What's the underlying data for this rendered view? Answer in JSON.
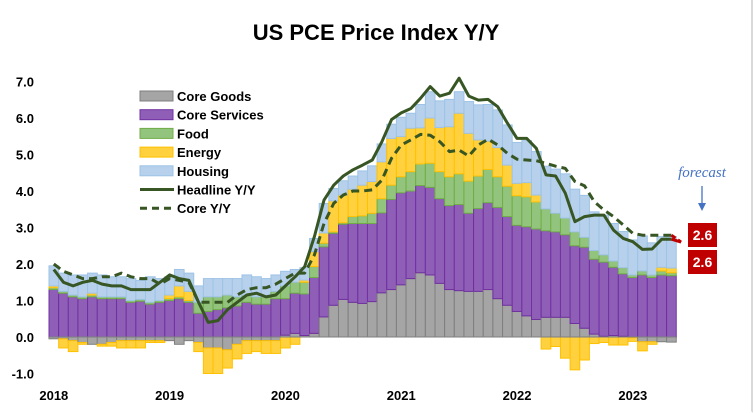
{
  "chart_data": {
    "type": "bar",
    "stacked": true,
    "title": "US PCE Price Index Y/Y",
    "xlabel": "",
    "ylabel": "",
    "ylim": [
      -1.0,
      7.0
    ],
    "y_ticks": [
      "-1.0",
      "0.0",
      "1.0",
      "2.0",
      "3.0",
      "4.0",
      "5.0",
      "6.0",
      "7.0"
    ],
    "x_tick_labels": [
      "2018",
      "2019",
      "2020",
      "2021",
      "2022",
      "2023"
    ],
    "grid": false,
    "legend_position": "top-left",
    "x": [
      "2018-01",
      "2018-02",
      "2018-03",
      "2018-04",
      "2018-05",
      "2018-06",
      "2018-07",
      "2018-08",
      "2018-09",
      "2018-10",
      "2018-11",
      "2018-12",
      "2019-01",
      "2019-02",
      "2019-03",
      "2019-04",
      "2019-05",
      "2019-06",
      "2019-07",
      "2019-08",
      "2019-09",
      "2019-10",
      "2019-11",
      "2019-12",
      "2020-01",
      "2020-02",
      "2020-03",
      "2020-04",
      "2020-05",
      "2020-06",
      "2020-07",
      "2020-08",
      "2020-09",
      "2020-10",
      "2020-11",
      "2020-12",
      "2021-01",
      "2021-02",
      "2021-03",
      "2021-04",
      "2021-05",
      "2021-06",
      "2021-07",
      "2021-08",
      "2021-09",
      "2021-10",
      "2021-11",
      "2021-12",
      "2022-01",
      "2022-02",
      "2022-03",
      "2022-04",
      "2022-05",
      "2022-06",
      "2022-07",
      "2022-08",
      "2022-09",
      "2022-10",
      "2022-11",
      "2022-12",
      "2023-01",
      "2023-02",
      "2023-03",
      "2023-04",
      "2023-05"
    ],
    "series": [
      {
        "name": "Core Goods",
        "kind": "bar",
        "color": "#a5a5a5",
        "stroke": "#7f7f7f",
        "values": [
          -0.05,
          -0.05,
          -0.1,
          -0.15,
          -0.2,
          -0.2,
          -0.15,
          -0.1,
          -0.1,
          -0.1,
          -0.1,
          -0.1,
          -0.1,
          -0.2,
          -0.1,
          -0.15,
          -0.3,
          -0.3,
          -0.35,
          -0.2,
          -0.1,
          -0.1,
          -0.1,
          -0.1,
          0.05,
          0.1,
          0.04,
          0.1,
          0.55,
          0.87,
          1.03,
          0.95,
          0.92,
          0.97,
          1.21,
          1.3,
          1.43,
          1.6,
          1.76,
          1.7,
          1.47,
          1.3,
          1.27,
          1.25,
          1.25,
          1.3,
          1.05,
          0.87,
          0.7,
          0.58,
          0.48,
          0.54,
          0.54,
          0.54,
          0.37,
          0.24,
          0.08,
          0.02,
          0.04,
          0.02,
          -0.02,
          -0.13,
          -0.13,
          -0.13,
          -0.14
        ]
      },
      {
        "name": "Core Services",
        "kind": "bar",
        "color": "#8f5fb8",
        "stroke": "#7030a0",
        "values": [
          1.3,
          1.2,
          1.1,
          1.05,
          1.1,
          1.05,
          1.05,
          1.05,
          0.95,
          0.98,
          0.9,
          0.95,
          1.0,
          1.05,
          0.95,
          0.65,
          0.7,
          0.75,
          0.8,
          0.85,
          0.95,
          0.9,
          0.9,
          1.05,
          1.0,
          1.1,
          1.14,
          1.53,
          1.92,
          1.97,
          2.06,
          2.16,
          2.19,
          2.14,
          2.19,
          2.47,
          2.52,
          2.4,
          2.39,
          2.4,
          2.32,
          2.3,
          2.36,
          2.14,
          2.27,
          2.38,
          2.5,
          2.43,
          2.36,
          2.44,
          2.48,
          2.37,
          2.34,
          2.26,
          2.13,
          2.22,
          2.05,
          2.03,
          1.87,
          1.71,
          1.63,
          1.7,
          1.63,
          1.7,
          1.68
        ]
      },
      {
        "name": "Food",
        "kind": "bar",
        "color": "#93c47d",
        "stroke": "#70ad47",
        "values": [
          0.05,
          0.05,
          0.05,
          0.05,
          0.05,
          0.05,
          0.05,
          0.05,
          0.05,
          0.05,
          0.05,
          0.05,
          0.05,
          0.05,
          0.05,
          0.3,
          0.4,
          0.35,
          0.35,
          0.25,
          0.2,
          0.2,
          0.2,
          0.2,
          0.35,
          0.3,
          0.32,
          0.3,
          0.1,
          0.04,
          0.04,
          0.19,
          0.21,
          0.28,
          0.39,
          0.39,
          0.44,
          0.53,
          0.59,
          0.66,
          0.74,
          0.79,
          0.84,
          0.88,
          0.89,
          0.91,
          0.84,
          0.83,
          0.81,
          0.82,
          0.74,
          0.6,
          0.51,
          0.46,
          0.38,
          0.27,
          0.24,
          0.2,
          0.17,
          0.17,
          0.07,
          0.11,
          0.07,
          0.11,
          0.08
        ]
      },
      {
        "name": "Energy",
        "kind": "bar",
        "color": "#ffd13f",
        "stroke": "#ffc000",
        "values": [
          0.05,
          -0.25,
          -0.3,
          -0.05,
          0.05,
          -0.05,
          -0.1,
          -0.2,
          -0.2,
          -0.2,
          -0.05,
          -0.05,
          0.1,
          0.3,
          0.25,
          -0.25,
          -0.7,
          -0.7,
          -0.5,
          -0.4,
          -0.35,
          -0.3,
          -0.35,
          -0.35,
          -0.3,
          -0.2,
          0.06,
          0.41,
          0.28,
          0.85,
          0.76,
          0.75,
          0.84,
          0.87,
          1.01,
          1.28,
          1.1,
          1.19,
          0.99,
          1.24,
          1.21,
          1.37,
          1.66,
          1.31,
          0.99,
          0.78,
          0.8,
          0.58,
          0.34,
          0.39,
          0.19,
          -0.33,
          -0.26,
          -0.58,
          -0.9,
          -0.63,
          -0.18,
          -0.15,
          -0.22,
          -0.22,
          -0.1,
          -0.25,
          -0.07,
          0.1,
          0.13
        ]
      },
      {
        "name": "Housing",
        "kind": "bar",
        "color": "#b7d1ec",
        "stroke": "#9dc3e6",
        "values": [
          0.55,
          0.5,
          0.55,
          0.6,
          0.55,
          0.6,
          0.55,
          0.55,
          0.6,
          0.52,
          0.7,
          0.6,
          0.5,
          0.45,
          0.5,
          0.45,
          0.5,
          0.5,
          0.45,
          0.5,
          0.55,
          0.55,
          0.5,
          0.45,
          0.4,
          0.35,
          0.34,
          0.36,
          0.81,
          0.34,
          0.39,
          0.36,
          0.39,
          0.43,
          0.49,
          0.39,
          0.53,
          0.41,
          0.64,
          0.72,
          0.73,
          0.75,
          0.59,
          0.87,
          0.96,
          1.0,
          1.03,
          1.1,
          1.12,
          1.15,
          1.19,
          1.17,
          1.21,
          1.21,
          1.17,
          1.15,
          1.06,
          1.09,
          1.03,
          0.99,
          0.96,
          0.96,
          0.88,
          0.84,
          0.86
        ]
      },
      {
        "name": "Headline Y/Y",
        "kind": "line",
        "color": "#375623",
        "dash": false,
        "values": [
          1.85,
          1.5,
          1.4,
          1.5,
          1.55,
          1.45,
          1.4,
          1.4,
          1.3,
          1.3,
          1.3,
          1.5,
          1.7,
          1.6,
          1.55,
          0.95,
          0.4,
          0.45,
          0.75,
          0.95,
          1.15,
          1.2,
          1.1,
          1.15,
          1.4,
          1.65,
          1.93,
          2.75,
          3.75,
          4.16,
          4.41,
          4.58,
          4.71,
          4.85,
          5.35,
          5.96,
          6.14,
          6.26,
          6.54,
          6.86,
          6.6,
          6.68,
          7.09,
          6.6,
          6.49,
          6.51,
          6.31,
          5.86,
          5.44,
          5.44,
          5.17,
          4.44,
          4.41,
          3.94,
          3.16,
          3.3,
          3.34,
          3.34,
          2.93,
          2.7,
          2.61,
          2.4,
          2.41,
          2.68,
          2.68
        ]
      },
      {
        "name": "Core Y/Y",
        "kind": "line",
        "color": "#375623",
        "dash": true,
        "values": [
          2.0,
          1.8,
          1.7,
          1.6,
          1.6,
          1.65,
          1.65,
          1.75,
          1.65,
          1.6,
          1.6,
          1.45,
          1.6,
          1.55,
          1.5,
          0.95,
          0.95,
          0.95,
          0.95,
          1.15,
          1.3,
          1.35,
          1.35,
          1.45,
          1.6,
          1.75,
          1.75,
          2.25,
          3.11,
          3.66,
          3.89,
          4.0,
          4.0,
          4.03,
          4.3,
          4.9,
          5.26,
          5.4,
          5.55,
          5.53,
          5.35,
          5.08,
          5.12,
          4.96,
          5.26,
          5.42,
          5.26,
          5.03,
          4.87,
          4.85,
          4.83,
          4.76,
          4.68,
          4.62,
          4.26,
          4.14,
          3.71,
          3.48,
          3.3,
          3.07,
          2.84,
          2.79,
          2.79,
          2.79,
          2.79
        ]
      }
    ],
    "forecast": {
      "annotation": "forecast",
      "annotation_color": "#4472c4",
      "color": "#c00000",
      "core_value": 2.6,
      "headline_value": 2.6,
      "labels": [
        "2.6",
        "2.6"
      ]
    }
  }
}
